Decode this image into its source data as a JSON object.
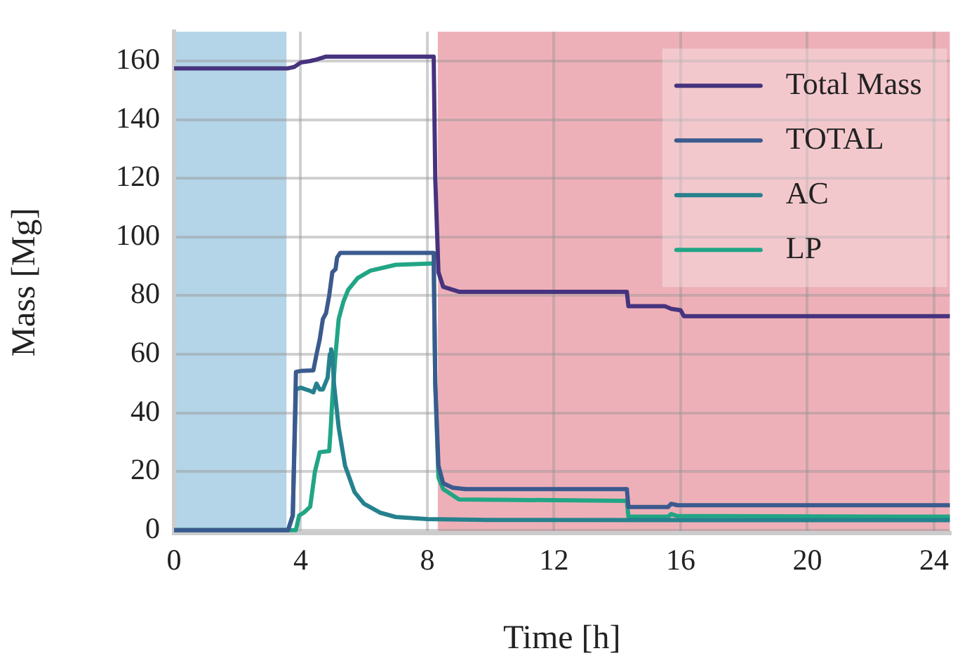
{
  "chart_data": {
    "type": "line",
    "xlabel": "Time [h]",
    "ylabel": "Mass [Mg]",
    "xlim": [
      0,
      24.5
    ],
    "ylim": [
      -1,
      170
    ],
    "xticks": [
      0,
      4,
      8,
      12,
      16,
      20,
      24
    ],
    "yticks": [
      0,
      20,
      40,
      60,
      80,
      100,
      120,
      140,
      160
    ],
    "grid": true,
    "legend": "top right",
    "marker": "none",
    "line_style": "solid",
    "bands": [
      {
        "axis": "x",
        "from": 0,
        "to": 3.55,
        "color": "#b4d4e7"
      },
      {
        "axis": "x",
        "from": 8.33,
        "to": 24.5,
        "color": "#eeb0b8"
      }
    ],
    "series": [
      {
        "name": "Total Mass",
        "color": "#46337e",
        "x": [
          0,
          3.6,
          3.8,
          4.0,
          4.3,
          4.5,
          4.8,
          8.2,
          8.25,
          8.35,
          8.5,
          9.0,
          14.3,
          14.35,
          15.5,
          15.7,
          16.0,
          16.1,
          24.5
        ],
        "values": [
          157.5,
          157.5,
          158,
          159.5,
          160,
          160.5,
          161.5,
          161.5,
          120,
          88,
          83,
          81.3,
          81.3,
          76.4,
          76.4,
          75.5,
          75,
          73,
          73
        ]
      },
      {
        "name": "TOTAL",
        "color": "#3b5a8e",
        "x": [
          0,
          3.6,
          3.75,
          3.85,
          4.0,
          4.4,
          4.5,
          4.6,
          4.7,
          4.8,
          4.9,
          5.0,
          5.1,
          5.15,
          5.25,
          8.2,
          8.25,
          8.35,
          8.5,
          8.8,
          9.2,
          14.3,
          14.35,
          15.6,
          15.7,
          15.9,
          24.5
        ],
        "values": [
          0,
          0,
          5,
          54,
          54.3,
          54.5,
          60,
          65,
          72,
          74,
          80,
          88,
          89,
          93,
          94.6,
          94.6,
          50,
          22,
          16,
          14.5,
          14,
          14,
          7.9,
          7.9,
          9,
          8.5,
          8.5
        ]
      },
      {
        "name": "AC",
        "color": "#26818e",
        "x": [
          0,
          3.6,
          3.75,
          3.85,
          4.0,
          4.3,
          4.4,
          4.5,
          4.6,
          4.7,
          4.85,
          4.92,
          4.96,
          5.0,
          5.05,
          5.2,
          5.4,
          5.7,
          6.0,
          6.5,
          7.0,
          8.0,
          10,
          24.5
        ],
        "values": [
          0,
          0,
          5,
          48,
          48.6,
          47.5,
          47,
          50,
          48,
          48,
          52,
          60,
          61.7,
          60,
          50,
          35,
          22,
          13,
          9,
          6,
          4.5,
          3.8,
          3.5,
          3.4
        ]
      },
      {
        "name": "LP",
        "color": "#21a585",
        "x": [
          0,
          3.85,
          3.95,
          4.1,
          4.3,
          4.45,
          4.6,
          4.9,
          4.95,
          5.0,
          5.1,
          5.2,
          5.35,
          5.5,
          5.8,
          6.2,
          7.0,
          8.2,
          8.25,
          8.35,
          8.5,
          9.0,
          14.3,
          14.35,
          15.6,
          15.7,
          15.9,
          24.5
        ],
        "values": [
          0,
          0,
          5,
          6,
          8,
          20,
          26.6,
          27,
          35,
          45,
          60,
          72,
          78,
          82,
          86,
          88.5,
          90.5,
          91,
          50,
          18,
          14,
          10.5,
          10,
          4.6,
          4.6,
          5.5,
          4.8,
          4.6
        ]
      }
    ]
  }
}
